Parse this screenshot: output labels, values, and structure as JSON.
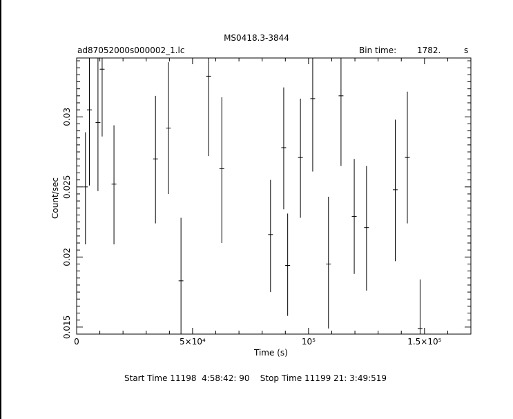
{
  "chart_data": {
    "type": "scatter",
    "title": "MS0418.3-3844",
    "subtitle_left": "ad87052000s000002_1.lc",
    "bin_time_label": "Bin time:",
    "bin_time_value": "1782.",
    "bin_time_unit": "s",
    "xlabel": "Time (s)",
    "ylabel": "Count/sec",
    "xlim": [
      0,
      170000
    ],
    "ylim": [
      0.0145,
      0.0342
    ],
    "x_ticks": [
      {
        "value": 0,
        "label": "0"
      },
      {
        "value": 50000,
        "label": "5×10⁴"
      },
      {
        "value": 100000,
        "label": "10⁵"
      },
      {
        "value": 150000,
        "label": "1.5×10⁵"
      }
    ],
    "y_ticks": [
      {
        "value": 0.015,
        "label": "0.015"
      },
      {
        "value": 0.02,
        "label": "0.02"
      },
      {
        "value": 0.025,
        "label": "0.025"
      },
      {
        "value": 0.03,
        "label": "0.03"
      }
    ],
    "points": [
      {
        "x": 3800,
        "y": 0.025,
        "lo": 0.0209,
        "hi": 0.0289
      },
      {
        "x": 5500,
        "y": 0.0305,
        "lo": 0.0251,
        "hi": 0.0342
      },
      {
        "x": 9200,
        "y": 0.0296,
        "lo": 0.0247,
        "hi": 0.0342
      },
      {
        "x": 11000,
        "y": 0.0334,
        "lo": 0.0286,
        "hi": 0.0342
      },
      {
        "x": 16100,
        "y": 0.0252,
        "lo": 0.0209,
        "hi": 0.0294
      },
      {
        "x": 34000,
        "y": 0.027,
        "lo": 0.0224,
        "hi": 0.0315
      },
      {
        "x": 39600,
        "y": 0.0292,
        "lo": 0.0245,
        "hi": 0.0339
      },
      {
        "x": 45000,
        "y": 0.0183,
        "lo": 0.0145,
        "hi": 0.0228
      },
      {
        "x": 56900,
        "y": 0.0329,
        "lo": 0.0272,
        "hi": 0.0342
      },
      {
        "x": 62600,
        "y": 0.0263,
        "lo": 0.021,
        "hi": 0.0314
      },
      {
        "x": 83600,
        "y": 0.0216,
        "lo": 0.0175,
        "hi": 0.0255
      },
      {
        "x": 89300,
        "y": 0.0278,
        "lo": 0.0234,
        "hi": 0.0321
      },
      {
        "x": 91000,
        "y": 0.0194,
        "lo": 0.0158,
        "hi": 0.0231
      },
      {
        "x": 96500,
        "y": 0.0271,
        "lo": 0.0228,
        "hi": 0.0313
      },
      {
        "x": 101800,
        "y": 0.0313,
        "lo": 0.0261,
        "hi": 0.0342
      },
      {
        "x": 108600,
        "y": 0.0195,
        "lo": 0.0149,
        "hi": 0.0243
      },
      {
        "x": 114000,
        "y": 0.0315,
        "lo": 0.0265,
        "hi": 0.0342
      },
      {
        "x": 119700,
        "y": 0.0229,
        "lo": 0.0188,
        "hi": 0.027
      },
      {
        "x": 125000,
        "y": 0.0221,
        "lo": 0.0176,
        "hi": 0.0265
      },
      {
        "x": 137400,
        "y": 0.0248,
        "lo": 0.0197,
        "hi": 0.0298
      },
      {
        "x": 142600,
        "y": 0.0271,
        "lo": 0.0224,
        "hi": 0.0318
      },
      {
        "x": 148100,
        "y": 0.0149,
        "lo": 0.0145,
        "hi": 0.0184
      }
    ],
    "grid": false,
    "legend": "none"
  },
  "footer": {
    "times": "Start Time 11198  4:58:42: 90    Stop Time 11199 21: 3:49:519"
  }
}
